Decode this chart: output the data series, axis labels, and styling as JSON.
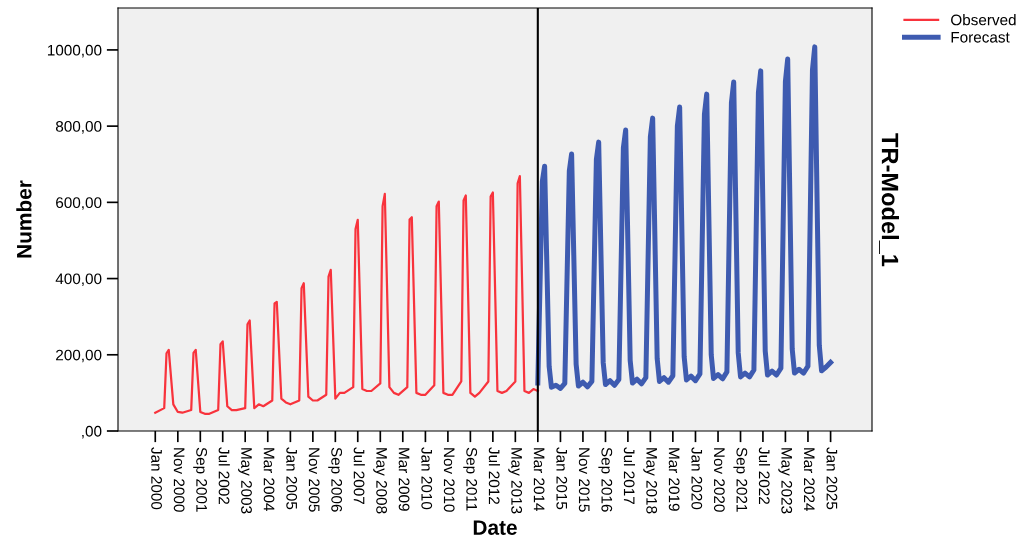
{
  "chart_data": {
    "type": "line",
    "xlabel": "Date",
    "ylabel": "Number",
    "annotations": [
      "TR-Model_1"
    ],
    "xlim": [
      "1998-08-15",
      "2026-07-15"
    ],
    "ylim": [
      0,
      1110
    ],
    "yticks": [
      {
        "value": 0,
        "label": ",00"
      },
      {
        "value": 200,
        "label": "200,00"
      },
      {
        "value": 400,
        "label": "400,00"
      },
      {
        "value": 600,
        "label": "600,00"
      },
      {
        "value": 800,
        "label": "800,00"
      },
      {
        "value": 1000,
        "label": "1000,00"
      }
    ],
    "xticks": [
      {
        "value": "2000-01",
        "label": "Jan 2000"
      },
      {
        "value": "2000-11",
        "label": "Nov 2000"
      },
      {
        "value": "2001-09",
        "label": "Sep 2001"
      },
      {
        "value": "2002-07",
        "label": "Jul 2002"
      },
      {
        "value": "2003-05",
        "label": "May 2003"
      },
      {
        "value": "2004-03",
        "label": "Mar 2004"
      },
      {
        "value": "2005-01",
        "label": "Jan 2005"
      },
      {
        "value": "2005-11",
        "label": "Nov 2005"
      },
      {
        "value": "2006-09",
        "label": "Sep 2006"
      },
      {
        "value": "2007-07",
        "label": "Jul 2007"
      },
      {
        "value": "2008-05",
        "label": "May 2008"
      },
      {
        "value": "2009-03",
        "label": "Mar 2009"
      },
      {
        "value": "2010-01",
        "label": "Jan 2010"
      },
      {
        "value": "2010-11",
        "label": "Nov 2010"
      },
      {
        "value": "2011-09",
        "label": "Sep 2011"
      },
      {
        "value": "2012-07",
        "label": "Jul 2012"
      },
      {
        "value": "2013-05",
        "label": "May 2013"
      },
      {
        "value": "2014-03",
        "label": "Mar 2014"
      },
      {
        "value": "2015-01",
        "label": "Jan 2015"
      },
      {
        "value": "2015-11",
        "label": "Nov 2015"
      },
      {
        "value": "2016-09",
        "label": "Sep 2016"
      },
      {
        "value": "2017-07",
        "label": "Jul 2017"
      },
      {
        "value": "2018-05",
        "label": "May 2018"
      },
      {
        "value": "2019-03",
        "label": "Mar 2019"
      },
      {
        "value": "2020-01",
        "label": "Jan 2020"
      },
      {
        "value": "2020-11",
        "label": "Nov 2020"
      },
      {
        "value": "2021-09",
        "label": "Sep 2021"
      },
      {
        "value": "2022-07",
        "label": "Jul 2022"
      },
      {
        "value": "2023-05",
        "label": "May 2023"
      },
      {
        "value": "2024-03",
        "label": "Mar 2024"
      },
      {
        "value": "2025-01",
        "label": "Jan 2025"
      }
    ],
    "ref_lines": [
      {
        "axis": "x",
        "value": "2014-03",
        "color": "#000000"
      }
    ],
    "grid": false,
    "legend": "top right",
    "marker": "none",
    "line_style": "solid",
    "series": [
      {
        "name": "Observed",
        "color": "#f8333c",
        "x": [
          "2000-01",
          "2000-05",
          "2000-06",
          "2000-07",
          "2000-09",
          "2000-11",
          "2001-01",
          "2001-05",
          "2001-06",
          "2001-07",
          "2001-09",
          "2001-11",
          "2002-01",
          "2002-05",
          "2002-06",
          "2002-07",
          "2002-09",
          "2002-11",
          "2003-01",
          "2003-05",
          "2003-06",
          "2003-07",
          "2003-09",
          "2003-11",
          "2004-01",
          "2004-05",
          "2004-06",
          "2004-07",
          "2004-09",
          "2004-11",
          "2005-01",
          "2005-05",
          "2005-06",
          "2005-07",
          "2005-09",
          "2005-11",
          "2006-01",
          "2006-05",
          "2006-06",
          "2006-07",
          "2006-09",
          "2006-11",
          "2007-01",
          "2007-05",
          "2007-06",
          "2007-07",
          "2007-09",
          "2007-11",
          "2008-01",
          "2008-05",
          "2008-06",
          "2008-07",
          "2008-09",
          "2008-11",
          "2009-01",
          "2009-05",
          "2009-06",
          "2009-07",
          "2009-09",
          "2009-11",
          "2010-01",
          "2010-05",
          "2010-06",
          "2010-07",
          "2010-09",
          "2010-11",
          "2011-01",
          "2011-05",
          "2011-06",
          "2011-07",
          "2011-09",
          "2011-11",
          "2012-01",
          "2012-05",
          "2012-06",
          "2012-07",
          "2012-09",
          "2012-11",
          "2013-01",
          "2013-05",
          "2013-06",
          "2013-07",
          "2013-09",
          "2013-11",
          "2014-01",
          "2014-03"
        ],
        "values": [
          48,
          60,
          204,
          213,
          70,
          50,
          48,
          55,
          205,
          213,
          50,
          45,
          45,
          55,
          228,
          235,
          65,
          55,
          55,
          60,
          280,
          290,
          60,
          70,
          65,
          80,
          335,
          339,
          85,
          75,
          70,
          80,
          375,
          388,
          90,
          80,
          80,
          95,
          405,
          423,
          85,
          100,
          100,
          115,
          530,
          554,
          110,
          105,
          105,
          125,
          590,
          622,
          115,
          100,
          95,
          115,
          555,
          561,
          100,
          95,
          95,
          120,
          590,
          602,
          100,
          95,
          95,
          130,
          605,
          618,
          100,
          90,
          100,
          130,
          615,
          626,
          105,
          100,
          105,
          130,
          650,
          669,
          105,
          100,
          110,
          105
        ]
      },
      {
        "name": "Forecast",
        "color": "#3e5bb0",
        "x": [
          "2014-03",
          "2014-05",
          "2014-06",
          "2014-08",
          "2014-09",
          "2014-11",
          "2015-01",
          "2015-03",
          "2015-05",
          "2015-06",
          "2015-08",
          "2015-09",
          "2015-11",
          "2016-01",
          "2016-03",
          "2016-05",
          "2016-06",
          "2016-08",
          "2016-09",
          "2016-11",
          "2017-01",
          "2017-03",
          "2017-05",
          "2017-06",
          "2017-08",
          "2017-09",
          "2017-11",
          "2018-01",
          "2018-03",
          "2018-05",
          "2018-06",
          "2018-08",
          "2018-09",
          "2018-11",
          "2019-01",
          "2019-03",
          "2019-05",
          "2019-06",
          "2019-08",
          "2019-09",
          "2019-11",
          "2020-01",
          "2020-03",
          "2020-05",
          "2020-06",
          "2020-08",
          "2020-09",
          "2020-11",
          "2021-01",
          "2021-03",
          "2021-05",
          "2021-06",
          "2021-08",
          "2021-09",
          "2021-11",
          "2022-01",
          "2022-03",
          "2022-05",
          "2022-06",
          "2022-08",
          "2022-09",
          "2022-11",
          "2023-01",
          "2023-03",
          "2023-05",
          "2023-06",
          "2023-08",
          "2023-09",
          "2023-11",
          "2024-01",
          "2024-03",
          "2024-05",
          "2024-06",
          "2024-08",
          "2024-09",
          "2024-11",
          "2025-01"
        ],
        "values": [
          126,
          655,
          695,
          170,
          115,
          120,
          112,
          125,
          683,
          727,
          175,
          118,
          128,
          116,
          130,
          713,
          758,
          180,
          122,
          132,
          120,
          135,
          743,
          790,
          185,
          126,
          136,
          124,
          140,
          772,
          821,
          190,
          130,
          140,
          128,
          145,
          800,
          850,
          195,
          134,
          144,
          132,
          150,
          831,
          884,
          200,
          138,
          148,
          137,
          155,
          861,
          916,
          205,
          142,
          152,
          142,
          160,
          888,
          945,
          210,
          147,
          157,
          147,
          165,
          917,
          976,
          215,
          152,
          162,
          152,
          170,
          948,
          1008,
          225,
          158,
          168,
          180
        ]
      }
    ]
  }
}
